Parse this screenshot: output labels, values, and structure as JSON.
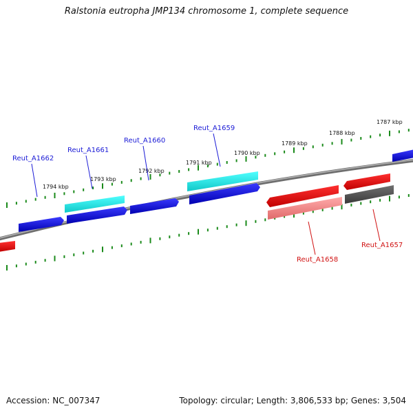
{
  "title": "Ralstonia eutropha JMP134 chromosome 1, complete sequence",
  "footer": {
    "accession": "Accession: NC_007347",
    "stats": "Topology: circular; Length: 3,806,533 bp; Genes: 3,504"
  },
  "tick_labels": [
    "1794 kbp",
    "1793 kbp",
    "1792 kbp",
    "1791 kbp",
    "1790 kbp",
    "1789 kbp",
    "1788 kbp",
    "1787 kbp"
  ],
  "genes": [
    {
      "id": "Reut_A1662",
      "label": "Reut_A1662",
      "strand": "reverse",
      "color": "#1a1ad6"
    },
    {
      "id": "Reut_A1661",
      "label": "Reut_A1661",
      "strand": "reverse",
      "color": "#1a1ad6"
    },
    {
      "id": "Reut_A1660",
      "label": "Reut_A1660",
      "strand": "reverse",
      "color": "#1a1ad6"
    },
    {
      "id": "Reut_A1659",
      "label": "Reut_A1659",
      "strand": "reverse",
      "color": "#1a1ad6"
    },
    {
      "id": "Reut_A1658",
      "label": "Reut_A1658",
      "strand": "forward",
      "color": "#d01010"
    },
    {
      "id": "Reut_A1657",
      "label": "Reut_A1657",
      "strand": "forward",
      "color": "#d01010"
    }
  ],
  "colors": {
    "blue_gene": "#1a1ad6",
    "red_gene": "#ee1111",
    "cyan_feature": "#22e8e8",
    "pink_feature": "#f08888",
    "gray_feature": "#555555",
    "backbone": "#8a8a8a",
    "ticks": "#1a8a1a"
  }
}
